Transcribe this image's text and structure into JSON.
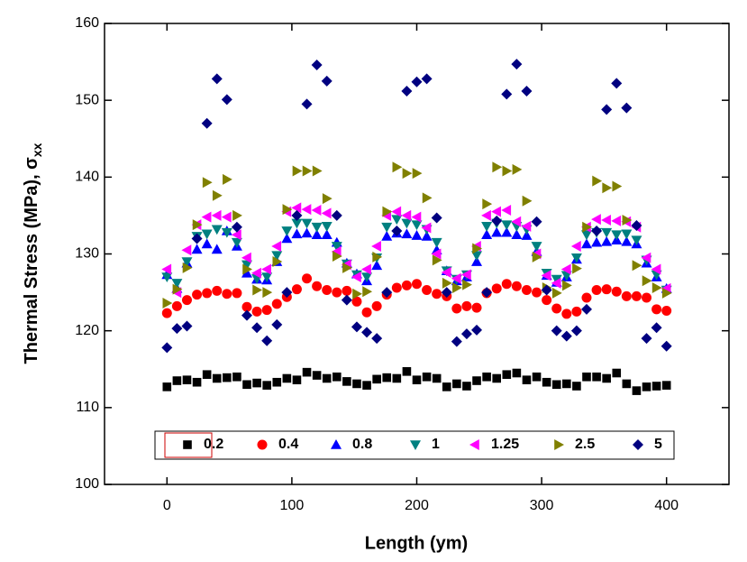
{
  "chart_data": {
    "type": "scatter",
    "xlabel": "Length (ym)",
    "ylabel": "Thermal Stress (MPa), σ",
    "ylabel_subscript": "xx",
    "xlim": [
      -50,
      450
    ],
    "ylim": [
      100,
      160
    ],
    "xticks": [
      0,
      100,
      200,
      300,
      400
    ],
    "yticks": [
      100,
      110,
      120,
      130,
      140,
      150,
      160
    ],
    "legend": "bottom",
    "x": [
      0,
      8,
      16,
      24,
      32,
      40,
      48,
      56,
      64,
      72,
      80,
      88,
      96,
      104,
      112,
      120,
      128,
      136,
      144,
      152,
      160,
      168,
      176,
      184,
      192,
      200,
      208,
      216,
      224,
      232,
      240,
      248,
      256,
      264,
      272,
      280,
      288,
      296,
      304,
      312,
      320,
      328,
      336,
      344,
      352,
      360,
      368,
      376,
      384,
      392,
      400
    ],
    "series": [
      {
        "name": "0.2",
        "color": "#000000",
        "marker": "square",
        "values": [
          112.7,
          113.5,
          113.6,
          113.3,
          114.3,
          113.8,
          113.9,
          114,
          113,
          113.2,
          112.9,
          113.3,
          113.8,
          113.6,
          114.6,
          114.2,
          113.8,
          114,
          113.4,
          113.1,
          112.9,
          113.7,
          113.9,
          113.8,
          114.7,
          113.6,
          114,
          113.8,
          112.7,
          113.1,
          112.8,
          113.5,
          114,
          113.8,
          114.3,
          114.5,
          113.6,
          114,
          113.3,
          113,
          113.1,
          112.8,
          114,
          114,
          113.8,
          114.5,
          113.1,
          112.2,
          112.7,
          112.8,
          112.9
        ]
      },
      {
        "name": "0.4",
        "color": "#ff0000",
        "marker": "circle",
        "values": [
          122.3,
          123.2,
          124,
          124.7,
          124.9,
          125.2,
          124.8,
          124.9,
          123.1,
          122.5,
          122.7,
          123.5,
          124.4,
          125.4,
          126.8,
          125.8,
          125.3,
          125,
          125.2,
          123.8,
          122.4,
          123.2,
          124.7,
          125.6,
          125.9,
          126.1,
          125.3,
          124.8,
          124.5,
          122.9,
          123.2,
          123,
          124.9,
          125.5,
          126.1,
          125.8,
          125.3,
          125,
          124,
          122.9,
          122.2,
          122.5,
          124.3,
          125.3,
          125.4,
          125.1,
          124.5,
          124.5,
          124.3,
          122.8,
          122.6
        ]
      },
      {
        "name": "0.8",
        "color": "#0000ff",
        "marker": "up",
        "values": [
          127.3,
          125.5,
          128.8,
          130.6,
          131.3,
          130.6,
          133,
          131,
          127.5,
          126.7,
          126.6,
          129,
          132,
          132.6,
          132.7,
          132.5,
          132.5,
          131.5,
          128.8,
          127.4,
          126.5,
          128.5,
          132.3,
          132.7,
          132.6,
          132.4,
          132.3,
          130.5,
          127.8,
          126.5,
          127,
          129,
          132.5,
          132.8,
          132.8,
          132.5,
          132.4,
          130.3,
          127.2,
          126.3,
          127,
          129.3,
          131.3,
          131.5,
          131.6,
          131.8,
          131.6,
          131.3,
          128.8,
          127,
          125.5
        ]
      },
      {
        "name": "1",
        "color": "#008080",
        "marker": "down",
        "values": [
          127,
          126.2,
          129,
          132.3,
          132.6,
          133.2,
          132.8,
          131.5,
          128.6,
          126.8,
          127,
          129.8,
          133,
          134,
          134,
          133.5,
          133.6,
          131,
          128.7,
          127.3,
          127,
          129.5,
          133.5,
          134.5,
          134,
          133.8,
          133.2,
          131.5,
          127.8,
          126.7,
          127.3,
          129.8,
          133.6,
          134,
          133.8,
          133.6,
          133.2,
          131,
          127.5,
          126.7,
          127.2,
          129.5,
          132.5,
          132.8,
          132.8,
          132.5,
          132.6,
          131.8,
          129.2,
          127.3,
          125.3
        ]
      },
      {
        "name": "1.25",
        "color": "#ff00ff",
        "marker": "left",
        "values": [
          128,
          125,
          130.5,
          133.8,
          134.8,
          135,
          134.8,
          132.5,
          129.5,
          127.5,
          128,
          131,
          135.5,
          136,
          135.8,
          135.7,
          135.3,
          130.3,
          128.6,
          127,
          128,
          131,
          135,
          135.5,
          135,
          134.8,
          133.4,
          130,
          127.6,
          126.8,
          127.3,
          131,
          135,
          135.5,
          135.7,
          134.2,
          133.6,
          130,
          127.2,
          126.2,
          128,
          131,
          133.5,
          134.5,
          134.4,
          134.3,
          134.2,
          133.5,
          129.5,
          128,
          125.5
        ]
      },
      {
        "name": "2.5",
        "color": "#808000",
        "marker": "right",
        "values": [
          123.6,
          125.4,
          128.2,
          133.8,
          139.3,
          137.6,
          139.7,
          135,
          128,
          125.3,
          125,
          129,
          135.8,
          140.8,
          140.8,
          140.8,
          137.2,
          129.7,
          128.2,
          124.8,
          125.1,
          129.6,
          135.5,
          141.3,
          140.5,
          140.5,
          137.3,
          129.2,
          126.2,
          125.6,
          126,
          130.7,
          136.5,
          141.3,
          140.8,
          141,
          136.9,
          129.6,
          125.6,
          124.9,
          125.9,
          128.1,
          133.5,
          139.5,
          138.6,
          138.8,
          134.4,
          128.5,
          126.5,
          125.6,
          124.9
        ]
      },
      {
        "name": "5",
        "color": "#000080",
        "marker": "diamond",
        "values": [
          117.8,
          120.3,
          120.6,
          132,
          147,
          152.8,
          150.1,
          133.5,
          122,
          120.4,
          118.7,
          120.8,
          125,
          135,
          149.5,
          154.6,
          152.5,
          135,
          124,
          120.5,
          119.8,
          119,
          125,
          133,
          151.2,
          152.4,
          152.8,
          134.7,
          125,
          118.6,
          119.6,
          120.1,
          125,
          134.3,
          150.8,
          154.7,
          151.2,
          134.2,
          125.3,
          120,
          119.3,
          120,
          122.8,
          133,
          148.8,
          152.2,
          149,
          133.7,
          119,
          120.4,
          118
        ]
      }
    ]
  }
}
